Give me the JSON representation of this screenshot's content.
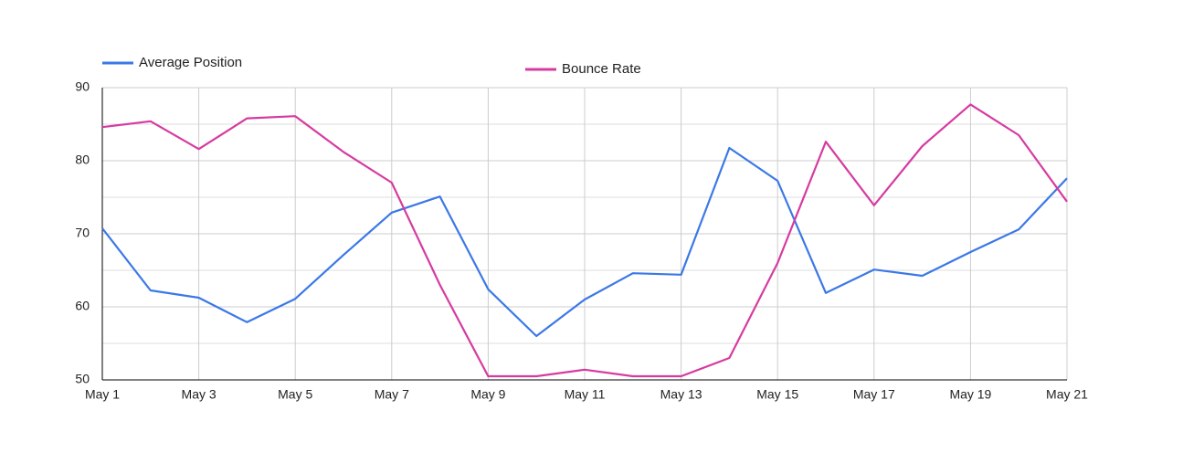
{
  "chart_data": {
    "type": "line",
    "categories": [
      "May 1",
      null,
      "May 3",
      null,
      "May 5",
      null,
      "May 7",
      null,
      "May 9",
      null,
      "May 11",
      null,
      "May 13",
      null,
      "May 15",
      null,
      "May 17",
      null,
      "May 19",
      null,
      "May 21"
    ],
    "series": [
      {
        "name": "Average Position",
        "color": "#3b78e7",
        "values": [
          70.75,
          62.25,
          61.25,
          57.9,
          61.1,
          67.1,
          72.9,
          75.1,
          62.4,
          56,
          61,
          64.6,
          64.4,
          81.75,
          77.25,
          61.9,
          65.1,
          64.25,
          67.5,
          70.6,
          77.6
        ]
      },
      {
        "name": "Bounce Rate",
        "color": "#d63ba0",
        "values": [
          84.6,
          85.4,
          81.6,
          85.8,
          86.1,
          81.2,
          77,
          63,
          50.5,
          50.5,
          51.4,
          50.5,
          50.5,
          53,
          66,
          82.6,
          73.9,
          82,
          87.7,
          83.5,
          74.4
        ]
      }
    ],
    "ylim": [
      50,
      90
    ],
    "yticks": [
      50,
      60,
      70,
      80,
      90
    ],
    "y_minor_gridlines": [
      55,
      65,
      75,
      85
    ],
    "grid": true
  }
}
